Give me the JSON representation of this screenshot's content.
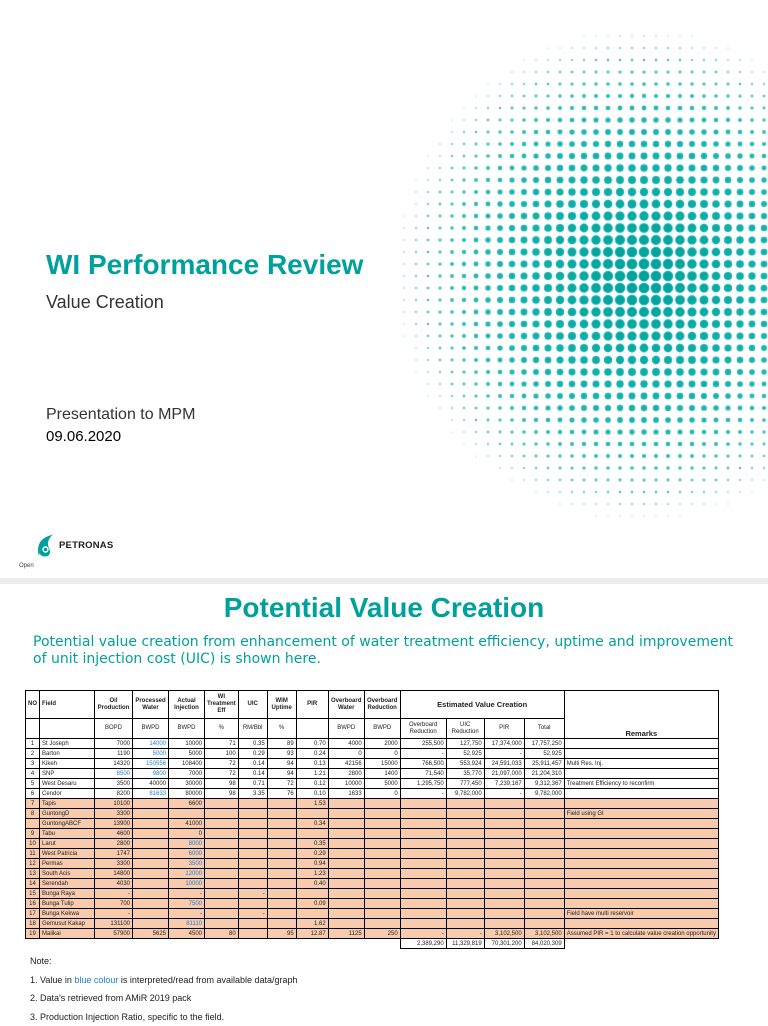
{
  "slide1": {
    "title": "WI Performance Review",
    "subtitle": "Value Creation",
    "presentation": "Presentation to MPM",
    "date": "09.06.2020",
    "logo_text": "PETRONAS",
    "classification": "Open",
    "accent_color": "#00a19c"
  },
  "slide2": {
    "title": "Potential Value Creation",
    "intro": "Potential value creation from enhancement of water treatment efficiency, uptime and improvement of unit injection cost (UIC) is shown here.",
    "table": {
      "headers": [
        "NO",
        "Field",
        "Oil Production",
        "Processed Water",
        "Actual Injection",
        "WI Treatment Eff",
        "UIC",
        "WIM Uptime",
        "PIR",
        "Overboard Water",
        "Overboard Reduction"
      ],
      "group_header": "Estimated Value Creation",
      "remarks_header": "Remarks",
      "units": [
        "",
        "",
        "BOPD",
        "BWPD",
        "BWPD",
        "%",
        "RM/Bbl",
        "%",
        "",
        "BWPD",
        "BWPD",
        "Overboard Reduction",
        "UIC Reduction",
        "PIR",
        "Total"
      ],
      "rows": [
        {
          "no": "1",
          "field": "St Joseph",
          "oil": "7000",
          "proc": "14000",
          "inj": "10000",
          "eff": "71",
          "uic": "0.35",
          "uptime": "89",
          "pir": "0.70",
          "ob_water": "4000",
          "ob_red": "2000",
          "v_ob": "255,500",
          "v_uic": "127,750",
          "v_pir": "17,374,000",
          "v_total": "17,757,250",
          "remark": "",
          "blue": [
            "proc"
          ],
          "hl": false
        },
        {
          "no": "2",
          "field": "Barton",
          "oil": "1190",
          "proc": "5000",
          "inj": "5000",
          "eff": "100",
          "uic": "0.29",
          "uptime": "93",
          "pir": "0.24",
          "ob_water": "0",
          "ob_red": "0",
          "v_ob": "-",
          "v_uic": "52,925",
          "v_pir": "-",
          "v_total": "52,925",
          "remark": "",
          "blue": [
            "proc"
          ],
          "hl": false
        },
        {
          "no": "3",
          "field": "Kikeh",
          "oil": "14320",
          "proc": "150556",
          "inj": "108400",
          "eff": "72",
          "uic": "0.14",
          "uptime": "94",
          "pir": "0.13",
          "ob_water": "42156",
          "ob_red": "15000",
          "v_ob": "766,500",
          "v_uic": "553,924",
          "v_pir": "24,591,033",
          "v_total": "25,911,457",
          "remark": "Multi Res. Inj.",
          "blue": [
            "proc"
          ],
          "hl": false
        },
        {
          "no": "4",
          "field": "SNP",
          "oil": "8500",
          "proc": "9800",
          "inj": "7000",
          "eff": "72",
          "uic": "0.14",
          "uptime": "94",
          "pir": "1.21",
          "ob_water": "2800",
          "ob_red": "1400",
          "v_ob": "71,540",
          "v_uic": "35,770",
          "v_pir": "21,097,000",
          "v_total": "21,204,310",
          "remark": "",
          "blue": [
            "oil",
            "proc"
          ],
          "hl": false
        },
        {
          "no": "5",
          "field": "West Desaru",
          "oil": "3500",
          "proc": "40000",
          "inj": "30000",
          "eff": "98",
          "uic": "0.71",
          "uptime": "72",
          "pir": "0.12",
          "ob_water": "10000",
          "ob_red": "5000",
          "v_ob": "1,295,750",
          "v_uic": "777,450",
          "v_pir": "7,239,167",
          "v_total": "9,312,367",
          "remark": "Treatment Efficiency to reconfirm",
          "blue": [],
          "hl": false
        },
        {
          "no": "6",
          "field": "Cendor",
          "oil": "8200",
          "proc": "81633",
          "inj": "80000",
          "eff": "98",
          "uic": "3.35",
          "uptime": "76",
          "pir": "0.10",
          "ob_water": "1633",
          "ob_red": "0",
          "v_ob": "-",
          "v_uic": "9,782,000",
          "v_pir": "-",
          "v_total": "9,782,000",
          "remark": "",
          "blue": [
            "proc"
          ],
          "hl": false
        },
        {
          "no": "7",
          "field": "Tapis",
          "oil": "10100",
          "proc": "",
          "inj": "6600",
          "eff": "",
          "uic": "",
          "uptime": "",
          "pir": "1.53",
          "ob_water": "",
          "ob_red": "",
          "v_ob": "",
          "v_uic": "",
          "v_pir": "",
          "v_total": "",
          "remark": "",
          "blue": [],
          "hl": true
        },
        {
          "no": "8",
          "field": "GuntongD",
          "oil": "3300",
          "proc": "",
          "inj": "",
          "eff": "",
          "uic": "",
          "uptime": "",
          "pir": "",
          "ob_water": "",
          "ob_red": "",
          "v_ob": "",
          "v_uic": "",
          "v_pir": "",
          "v_total": "",
          "remark": "Field using GI",
          "blue": [],
          "hl": true
        },
        {
          "no": "",
          "field": "GuntongABCF",
          "oil": "13900",
          "proc": "",
          "inj": "41000",
          "eff": "",
          "uic": "",
          "uptime": "",
          "pir": "0.34",
          "ob_water": "",
          "ob_red": "",
          "v_ob": "",
          "v_uic": "",
          "v_pir": "",
          "v_total": "",
          "remark": "",
          "blue": [],
          "hl": true
        },
        {
          "no": "9",
          "field": "Tabu",
          "oil": "4600",
          "proc": "",
          "inj": "0",
          "eff": "",
          "uic": "",
          "uptime": "",
          "pir": "",
          "ob_water": "",
          "ob_red": "",
          "v_ob": "",
          "v_uic": "",
          "v_pir": "",
          "v_total": "",
          "remark": "",
          "blue": [],
          "hl": true
        },
        {
          "no": "10",
          "field": "Larut",
          "oil": "2800",
          "proc": "",
          "inj": "8000",
          "eff": "",
          "uic": "",
          "uptime": "",
          "pir": "0.35",
          "ob_water": "",
          "ob_red": "",
          "v_ob": "",
          "v_uic": "",
          "v_pir": "",
          "v_total": "",
          "remark": "",
          "blue": [
            "inj"
          ],
          "hl": true
        },
        {
          "no": "11",
          "field": "West Patricia",
          "oil": "1747",
          "proc": "",
          "inj": "6000",
          "eff": "",
          "uic": "",
          "uptime": "",
          "pir": "0.29",
          "ob_water": "",
          "ob_red": "",
          "v_ob": "",
          "v_uic": "",
          "v_pir": "",
          "v_total": "",
          "remark": "",
          "blue": [
            "inj"
          ],
          "hl": true
        },
        {
          "no": "12",
          "field": "Permas",
          "oil": "3300",
          "proc": "",
          "inj": "3500",
          "eff": "",
          "uic": "",
          "uptime": "",
          "pir": "0.94",
          "ob_water": "",
          "ob_red": "",
          "v_ob": "",
          "v_uic": "",
          "v_pir": "",
          "v_total": "",
          "remark": "",
          "blue": [
            "inj"
          ],
          "hl": true
        },
        {
          "no": "13",
          "field": "South Acis",
          "oil": "14800",
          "proc": "",
          "inj": "12000",
          "eff": "",
          "uic": "",
          "uptime": "",
          "pir": "1.23",
          "ob_water": "",
          "ob_red": "",
          "v_ob": "",
          "v_uic": "",
          "v_pir": "",
          "v_total": "",
          "remark": "",
          "blue": [
            "inj"
          ],
          "hl": true
        },
        {
          "no": "14",
          "field": "Serendah",
          "oil": "4030",
          "proc": "",
          "inj": "10000",
          "eff": "",
          "uic": "",
          "uptime": "",
          "pir": "0.40",
          "ob_water": "",
          "ob_red": "",
          "v_ob": "",
          "v_uic": "",
          "v_pir": "",
          "v_total": "",
          "remark": "",
          "blue": [
            "inj"
          ],
          "hl": true
        },
        {
          "no": "15",
          "field": "Bunga Raya",
          "oil": "-",
          "proc": "",
          "inj": "-",
          "eff": "",
          "uic": "-",
          "uptime": "",
          "pir": "",
          "ob_water": "",
          "ob_red": "",
          "v_ob": "",
          "v_uic": "",
          "v_pir": "",
          "v_total": "",
          "remark": "",
          "blue": [],
          "hl": true
        },
        {
          "no": "16",
          "field": "Bunga Tulip",
          "oil": "700",
          "proc": "",
          "inj": "7500",
          "eff": "",
          "uic": "",
          "uptime": "",
          "pir": "0.09",
          "ob_water": "",
          "ob_red": "",
          "v_ob": "",
          "v_uic": "",
          "v_pir": "",
          "v_total": "",
          "remark": "",
          "blue": [
            "inj"
          ],
          "hl": true
        },
        {
          "no": "17",
          "field": "Bunga Kekwa",
          "oil": "-",
          "proc": "",
          "inj": "-",
          "eff": "",
          "uic": "-",
          "uptime": "",
          "pir": "",
          "ob_water": "",
          "ob_red": "",
          "v_ob": "",
          "v_uic": "",
          "v_pir": "",
          "v_total": "",
          "remark": "Field have multi reservoir",
          "blue": [],
          "hl": true
        },
        {
          "no": "18",
          "field": "Gemusut Kakap",
          "oil": "131100",
          "proc": "",
          "inj": "81110",
          "eff": "",
          "uic": "",
          "uptime": "",
          "pir": "1.62",
          "ob_water": "",
          "ob_red": "",
          "v_ob": "",
          "v_uic": "",
          "v_pir": "",
          "v_total": "",
          "remark": "",
          "blue": [
            "inj"
          ],
          "hl": true
        },
        {
          "no": "19",
          "field": "Malikai",
          "oil": "57900",
          "proc": "5625",
          "inj": "4500",
          "eff": "80",
          "uic": "",
          "uptime": "95",
          "pir": "12.87",
          "ob_water": "1125",
          "ob_red": "250",
          "v_ob": "-",
          "v_uic": "-",
          "v_pir": "3,102,500",
          "v_total": "3,102,500",
          "remark": "Assumed PIR = 1 to calculate value creation opportunity",
          "blue": [],
          "hl": true
        }
      ],
      "totals": {
        "v_ob": "2,389,290",
        "v_uic": "11,329,819",
        "v_pir": "70,301,200",
        "v_total": "84,020,309"
      }
    },
    "notes": {
      "heading": "Note:",
      "n1_pre": "1. Value in ",
      "n1_blue": "blue colour",
      "n1_post": " is interpreted/read from available data/graph",
      "n2": "2. Data's retrieved from AMiR 2019 pack",
      "n3": "3. Production Injection Ratio, specific to the field."
    },
    "colors": {
      "title": "#00a19c",
      "highlight": "#f8cbad",
      "interpreted_value": "#1e7fd6"
    }
  }
}
